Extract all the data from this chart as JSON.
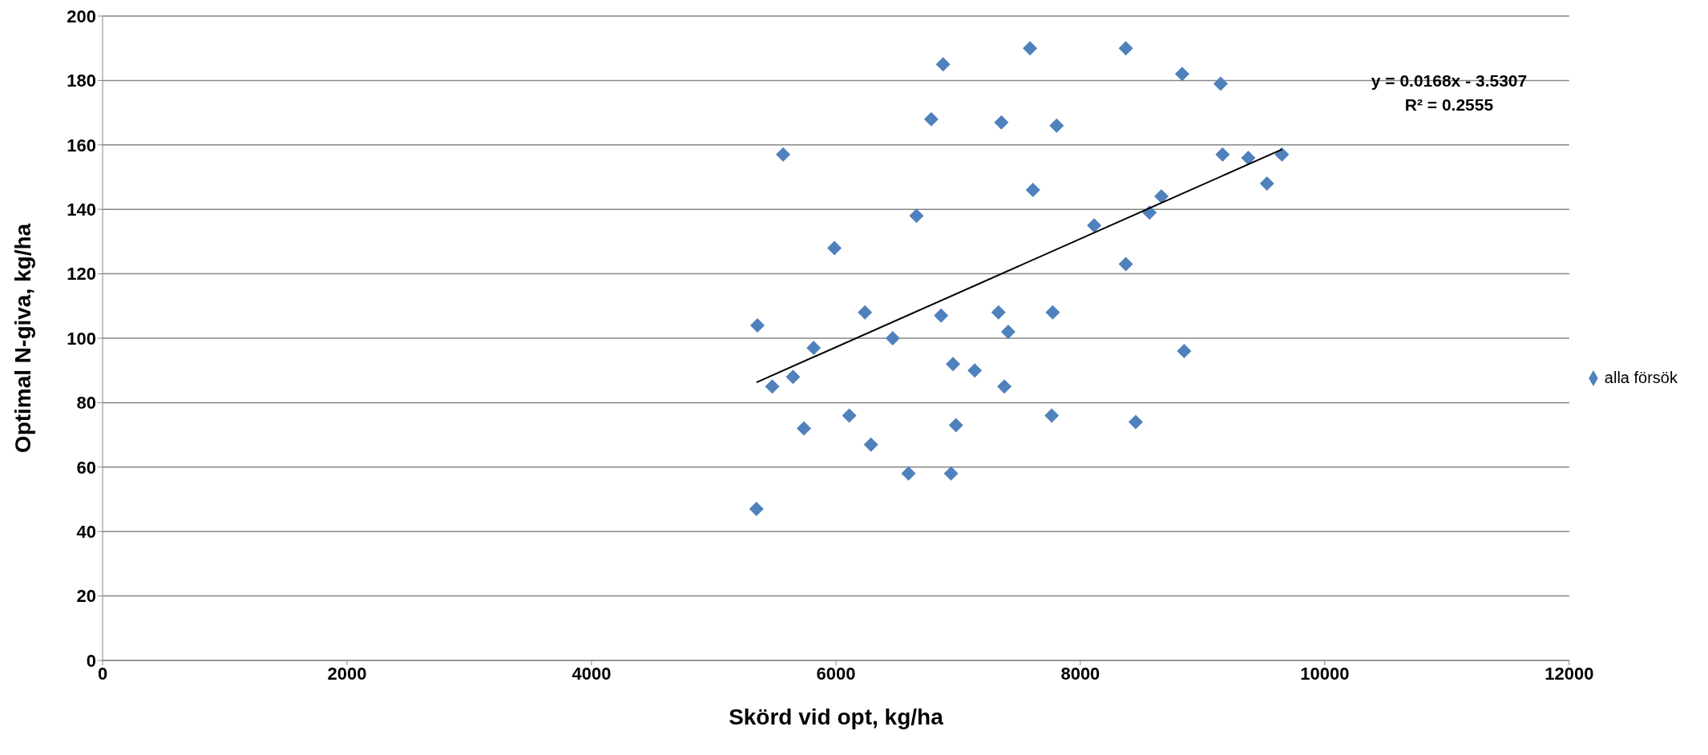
{
  "chart_data": {
    "type": "scatter",
    "xlabel": "Skörd vid opt, kg/ha",
    "ylabel": "Optimal N-giva, kg/ha",
    "xlim": [
      0,
      12000
    ],
    "xticks": [
      0,
      2000,
      4000,
      6000,
      8000,
      10000,
      12000
    ],
    "ylim": [
      0,
      200
    ],
    "yticks": [
      0,
      20,
      40,
      60,
      80,
      100,
      120,
      140,
      160,
      180,
      200
    ],
    "grid": "y",
    "legend": "right",
    "annotations": [
      "y = 0.0168x - 3.5307",
      "R² = 0.2555"
    ],
    "series": [
      {
        "name": "alla försök",
        "color": "#4f81bd",
        "marker": "diamond",
        "x": [
          5350,
          5358,
          5479,
          5649,
          5568,
          5738,
          5818,
          5988,
          6109,
          6238,
          6287,
          6465,
          6594,
          6659,
          6780,
          6861,
          6877,
          6958,
          6942,
          6982,
          7136,
          7330,
          7354,
          7378,
          7410,
          7588,
          7612,
          7766,
          7774,
          7806,
          8113,
          8372,
          8372,
          8453,
          8566,
          8663,
          8833,
          8849,
          9148,
          9164,
          9374,
          9527,
          9649
        ],
        "values": [
          47,
          104,
          85,
          88,
          157,
          72,
          97,
          128,
          76,
          108,
          67,
          100,
          58,
          138,
          168,
          107,
          185,
          92,
          58,
          73,
          90,
          108,
          167,
          85,
          102,
          190,
          146,
          76,
          108,
          166,
          135,
          190,
          123,
          74,
          139,
          144,
          182,
          96,
          179,
          157,
          156,
          148,
          157
        ]
      },
      {
        "type": "line",
        "color": "#000000",
        "marker": "none",
        "x": [
          5350,
          9650
        ],
        "values": [
          86.3,
          158.6
        ]
      }
    ]
  }
}
